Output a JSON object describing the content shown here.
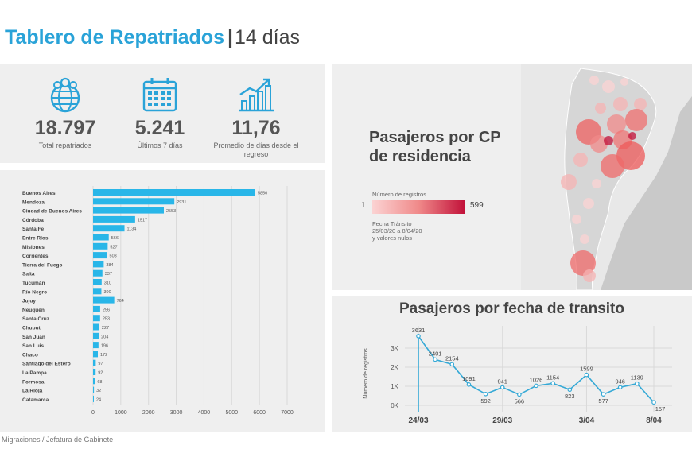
{
  "header": {
    "title_main": "Tablero de Repatriados",
    "separator": "|",
    "title_sub": "14 días"
  },
  "kpis": [
    {
      "icon": "globe-people-icon",
      "value": "18.797",
      "label": "Total repatriados"
    },
    {
      "icon": "calendar-icon",
      "value": "5.241",
      "label": "Últimos 7 días"
    },
    {
      "icon": "growth-chart-icon",
      "value": "11,76",
      "label": "Promedio de días desde el regreso"
    }
  ],
  "map": {
    "title": "Pasajeros por CP de residencia",
    "legend_title": "Número de registros",
    "legend_min": "1",
    "legend_max": "599",
    "legend_note": "Fecha Tránsito\n25/03/20 a 8/04/20\ny valores nulos",
    "colors": {
      "light": "#fbd3d3",
      "mid": "#f08a8a",
      "dark": "#c2123a"
    }
  },
  "source": "Migraciones / Jefatura de Gabinete",
  "colors": {
    "accent": "#2aa3d8",
    "bar": "#29b6e8",
    "line": "#35a9d6"
  },
  "chart_data": [
    {
      "type": "bar",
      "orientation": "horizontal",
      "categories": [
        "Buenos Aires",
        "Mendoza",
        "Ciudad de Buenos Aires",
        "Córdoba",
        "Santa Fe",
        "Entre Ríos",
        "Misiones",
        "Corrientes",
        "Tierra del Fuego",
        "Salta",
        "Tucumán",
        "Río Negro",
        "Jujuy",
        "Neuquén",
        "Santa Cruz",
        "Chubut",
        "San Juan",
        "San Luis",
        "Chaco",
        "Santiago del Estero",
        "La Pampa",
        "Formosa",
        "La Rioja",
        "Catamarca"
      ],
      "values": [
        5850,
        2931,
        2553,
        1517,
        1134,
        566,
        527,
        503,
        384,
        337,
        310,
        300,
        764,
        256,
        253,
        227,
        204,
        196,
        172,
        97,
        92,
        68,
        32,
        24
      ],
      "value_labels": [
        "5850",
        "2931",
        "2553",
        "1517",
        "1134",
        "566",
        "527",
        "503",
        "384",
        "337",
        "310",
        "300",
        "764",
        "256",
        "253",
        "227",
        "204",
        "196",
        "172",
        "97",
        "92",
        "68",
        "32",
        "24"
      ],
      "xlim": [
        0,
        7000
      ],
      "ticks": [
        "0",
        "1000",
        "2000",
        "3000",
        "4000",
        "5000",
        "6000",
        "7000"
      ],
      "grid": true
    },
    {
      "type": "line",
      "title": "Pasajeros por fecha de transito",
      "ylabel": "Número de registros",
      "x": [
        0,
        1,
        2,
        3,
        4,
        5,
        6,
        7,
        8,
        9,
        10,
        11,
        12,
        13,
        14
      ],
      "values": [
        3631,
        2401,
        2154,
        1091,
        592,
        941,
        566,
        1026,
        1154,
        823,
        1599,
        577,
        946,
        1139,
        157
      ],
      "x_tick_labels": [
        {
          "index": 0,
          "label": "24/03"
        },
        {
          "index": 5,
          "label": "29/03"
        },
        {
          "index": 10,
          "label": "3/04"
        },
        {
          "index": 14,
          "label": "8/04"
        }
      ],
      "y_ticks": [
        {
          "value": 0,
          "label": "0K"
        },
        {
          "value": 1000,
          "label": "1K"
        },
        {
          "value": 2000,
          "label": "2K"
        },
        {
          "value": 3000,
          "label": "3K"
        }
      ],
      "ylim": [
        0,
        4000
      ],
      "grid": true
    }
  ]
}
